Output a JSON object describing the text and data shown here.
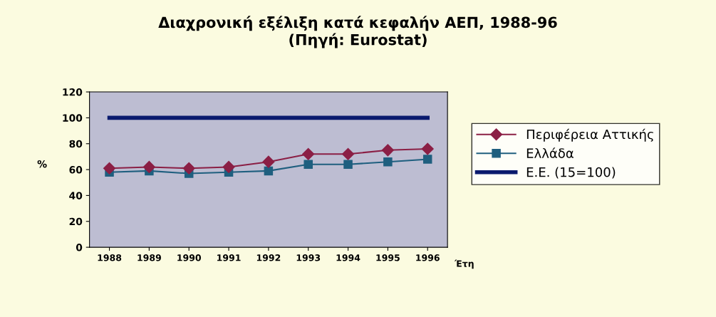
{
  "chart_data": {
    "type": "line",
    "title": "Διαχρονική εξέλιξη κατά κεφαλήν ΑΕΠ, 1988-96\n(Πηγή: Eurostat)",
    "categories": [
      "1988",
      "1989",
      "1990",
      "1991",
      "1992",
      "1993",
      "1994",
      "1995",
      "1996"
    ],
    "series": [
      {
        "name": "Περιφέρεια Αττικής",
        "color": "#8b1f45",
        "marker": "diamond",
        "values": [
          61,
          62,
          61,
          62,
          66,
          72,
          72,
          75,
          76
        ]
      },
      {
        "name": "Ελλάδα",
        "color": "#1f5f7f",
        "marker": "square",
        "values": [
          58,
          59,
          57,
          58,
          59,
          64,
          64,
          66,
          68
        ]
      },
      {
        "name": "Ε.Ε. (15=100)",
        "color": "#0a1a6e",
        "marker": "none",
        "values": [
          100,
          100,
          100,
          100,
          100,
          100,
          100,
          100,
          100
        ]
      }
    ],
    "xlabel": "Έτη",
    "ylabel": "%",
    "ylim": [
      0,
      120
    ],
    "yticks": [
      0,
      20,
      40,
      60,
      80,
      100,
      120
    ],
    "grid": false,
    "legend": "right"
  }
}
